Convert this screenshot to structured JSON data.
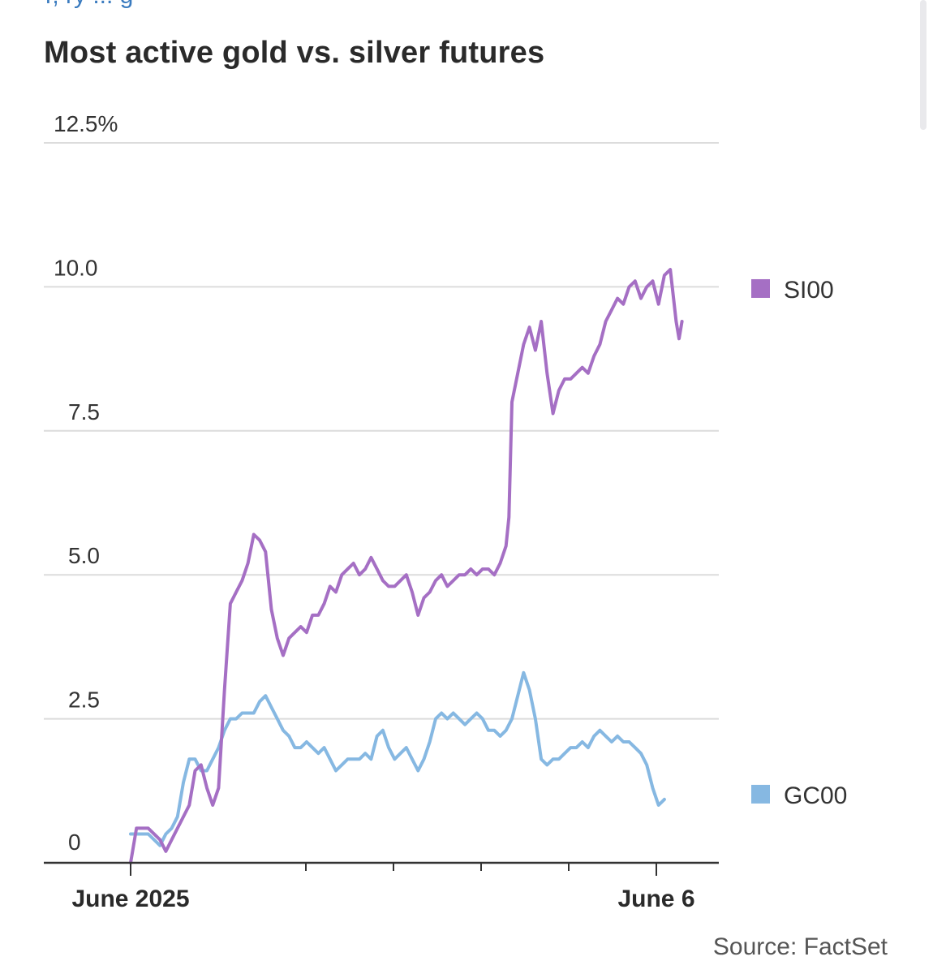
{
  "header": {
    "link_text": "r, ry ... g"
  },
  "chart_data": {
    "type": "line",
    "title": "Most active gold vs. silver futures",
    "source": "Source: FactSet",
    "ylim": [
      0,
      12.5
    ],
    "y_ticks": [
      "0",
      "2.5",
      "5.0",
      "7.5",
      "10.0",
      "12.5%"
    ],
    "y_tick_values": [
      0,
      2.5,
      5,
      7.5,
      10,
      12.5
    ],
    "xlim": [
      "2025-05-30",
      "2025-06-06"
    ],
    "x_labels": [
      {
        "date": "2025-05-30",
        "text": "June 2025"
      },
      {
        "date": "2025-06-05",
        "text": "June 6"
      }
    ],
    "x_tick_dates": [
      "2025-05-30",
      "2025-06-01",
      "2025-06-02",
      "2025-06-03",
      "2025-06-04",
      "2025-06-05"
    ],
    "grid": true,
    "series": [
      {
        "name": "SI00",
        "color": "#a56fc4",
        "points": [
          [
            0.0,
            0.0
          ],
          [
            0.01,
            0.6
          ],
          [
            0.03,
            0.6
          ],
          [
            0.05,
            0.4
          ],
          [
            0.06,
            0.2
          ],
          [
            0.08,
            0.6
          ],
          [
            0.1,
            1.0
          ],
          [
            0.11,
            1.6
          ],
          [
            0.12,
            1.7
          ],
          [
            0.13,
            1.3
          ],
          [
            0.14,
            1.0
          ],
          [
            0.15,
            1.3
          ],
          [
            0.16,
            3.0
          ],
          [
            0.17,
            4.5
          ],
          [
            0.18,
            4.7
          ],
          [
            0.19,
            4.9
          ],
          [
            0.2,
            5.2
          ],
          [
            0.21,
            5.7
          ],
          [
            0.22,
            5.6
          ],
          [
            0.23,
            5.4
          ],
          [
            0.24,
            4.4
          ],
          [
            0.25,
            3.9
          ],
          [
            0.26,
            3.6
          ],
          [
            0.27,
            3.9
          ],
          [
            0.28,
            4.0
          ],
          [
            0.29,
            4.1
          ],
          [
            0.3,
            4.0
          ],
          [
            0.31,
            4.3
          ],
          [
            0.32,
            4.3
          ],
          [
            0.33,
            4.5
          ],
          [
            0.34,
            4.8
          ],
          [
            0.35,
            4.7
          ],
          [
            0.36,
            5.0
          ],
          [
            0.37,
            5.1
          ],
          [
            0.38,
            5.2
          ],
          [
            0.39,
            5.0
          ],
          [
            0.4,
            5.1
          ],
          [
            0.41,
            5.3
          ],
          [
            0.42,
            5.1
          ],
          [
            0.43,
            4.9
          ],
          [
            0.44,
            4.8
          ],
          [
            0.45,
            4.8
          ],
          [
            0.46,
            4.9
          ],
          [
            0.47,
            5.0
          ],
          [
            0.48,
            4.7
          ],
          [
            0.49,
            4.3
          ],
          [
            0.5,
            4.6
          ],
          [
            0.51,
            4.7
          ],
          [
            0.52,
            4.9
          ],
          [
            0.53,
            5.0
          ],
          [
            0.54,
            4.8
          ],
          [
            0.55,
            4.9
          ],
          [
            0.56,
            5.0
          ],
          [
            0.57,
            5.0
          ],
          [
            0.58,
            5.1
          ],
          [
            0.59,
            5.0
          ],
          [
            0.6,
            5.1
          ],
          [
            0.61,
            5.1
          ],
          [
            0.62,
            5.0
          ],
          [
            0.63,
            5.2
          ],
          [
            0.64,
            5.5
          ],
          [
            0.645,
            6.0
          ],
          [
            0.65,
            8.0
          ],
          [
            0.66,
            8.5
          ],
          [
            0.67,
            9.0
          ],
          [
            0.68,
            9.3
          ],
          [
            0.69,
            8.9
          ],
          [
            0.7,
            9.4
          ],
          [
            0.71,
            8.5
          ],
          [
            0.72,
            7.8
          ],
          [
            0.73,
            8.2
          ],
          [
            0.74,
            8.4
          ],
          [
            0.75,
            8.4
          ],
          [
            0.76,
            8.5
          ],
          [
            0.77,
            8.6
          ],
          [
            0.78,
            8.5
          ],
          [
            0.79,
            8.8
          ],
          [
            0.8,
            9.0
          ],
          [
            0.81,
            9.4
          ],
          [
            0.82,
            9.6
          ],
          [
            0.83,
            9.8
          ],
          [
            0.84,
            9.7
          ],
          [
            0.85,
            10.0
          ],
          [
            0.86,
            10.1
          ],
          [
            0.87,
            9.8
          ],
          [
            0.88,
            10.0
          ],
          [
            0.89,
            10.1
          ],
          [
            0.9,
            9.7
          ],
          [
            0.91,
            10.2
          ],
          [
            0.92,
            10.3
          ],
          [
            0.93,
            9.4
          ],
          [
            0.935,
            9.1
          ],
          [
            0.94,
            9.4
          ]
        ]
      },
      {
        "name": "GC00",
        "color": "#86b8e2",
        "points": [
          [
            0.0,
            0.5
          ],
          [
            0.01,
            0.5
          ],
          [
            0.03,
            0.5
          ],
          [
            0.05,
            0.3
          ],
          [
            0.06,
            0.5
          ],
          [
            0.07,
            0.6
          ],
          [
            0.08,
            0.8
          ],
          [
            0.09,
            1.4
          ],
          [
            0.1,
            1.8
          ],
          [
            0.11,
            1.8
          ],
          [
            0.12,
            1.6
          ],
          [
            0.13,
            1.6
          ],
          [
            0.14,
            1.8
          ],
          [
            0.15,
            2.0
          ],
          [
            0.16,
            2.3
          ],
          [
            0.17,
            2.5
          ],
          [
            0.18,
            2.5
          ],
          [
            0.19,
            2.6
          ],
          [
            0.2,
            2.6
          ],
          [
            0.21,
            2.6
          ],
          [
            0.22,
            2.8
          ],
          [
            0.23,
            2.9
          ],
          [
            0.24,
            2.7
          ],
          [
            0.25,
            2.5
          ],
          [
            0.26,
            2.3
          ],
          [
            0.27,
            2.2
          ],
          [
            0.28,
            2.0
          ],
          [
            0.29,
            2.0
          ],
          [
            0.3,
            2.1
          ],
          [
            0.31,
            2.0
          ],
          [
            0.32,
            1.9
          ],
          [
            0.33,
            2.0
          ],
          [
            0.34,
            1.8
          ],
          [
            0.35,
            1.6
          ],
          [
            0.36,
            1.7
          ],
          [
            0.37,
            1.8
          ],
          [
            0.38,
            1.8
          ],
          [
            0.39,
            1.8
          ],
          [
            0.4,
            1.9
          ],
          [
            0.41,
            1.8
          ],
          [
            0.42,
            2.2
          ],
          [
            0.43,
            2.3
          ],
          [
            0.44,
            2.0
          ],
          [
            0.45,
            1.8
          ],
          [
            0.46,
            1.9
          ],
          [
            0.47,
            2.0
          ],
          [
            0.48,
            1.8
          ],
          [
            0.49,
            1.6
          ],
          [
            0.5,
            1.8
          ],
          [
            0.51,
            2.1
          ],
          [
            0.52,
            2.5
          ],
          [
            0.53,
            2.6
          ],
          [
            0.54,
            2.5
          ],
          [
            0.55,
            2.6
          ],
          [
            0.56,
            2.5
          ],
          [
            0.57,
            2.4
          ],
          [
            0.58,
            2.5
          ],
          [
            0.59,
            2.6
          ],
          [
            0.6,
            2.5
          ],
          [
            0.61,
            2.3
          ],
          [
            0.62,
            2.3
          ],
          [
            0.63,
            2.2
          ],
          [
            0.64,
            2.3
          ],
          [
            0.65,
            2.5
          ],
          [
            0.66,
            2.9
          ],
          [
            0.67,
            3.3
          ],
          [
            0.68,
            3.0
          ],
          [
            0.69,
            2.5
          ],
          [
            0.7,
            1.8
          ],
          [
            0.71,
            1.7
          ],
          [
            0.72,
            1.8
          ],
          [
            0.73,
            1.8
          ],
          [
            0.74,
            1.9
          ],
          [
            0.75,
            2.0
          ],
          [
            0.76,
            2.0
          ],
          [
            0.77,
            2.1
          ],
          [
            0.78,
            2.0
          ],
          [
            0.79,
            2.2
          ],
          [
            0.8,
            2.3
          ],
          [
            0.81,
            2.2
          ],
          [
            0.82,
            2.1
          ],
          [
            0.83,
            2.2
          ],
          [
            0.84,
            2.1
          ],
          [
            0.85,
            2.1
          ],
          [
            0.86,
            2.0
          ],
          [
            0.87,
            1.9
          ],
          [
            0.88,
            1.7
          ],
          [
            0.89,
            1.3
          ],
          [
            0.9,
            1.0
          ],
          [
            0.91,
            1.1
          ]
        ]
      }
    ],
    "legend_position": "right"
  }
}
